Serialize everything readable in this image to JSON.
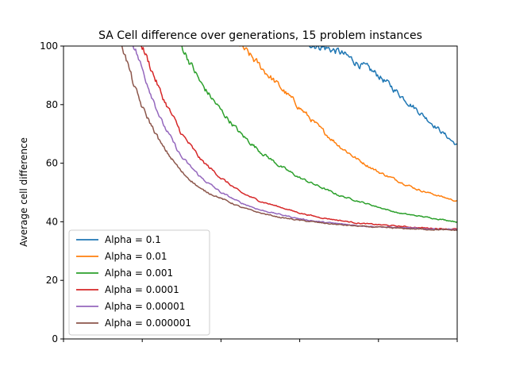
{
  "chart_data": {
    "type": "line",
    "title": "SA Cell difference over generations, 15 problem instances",
    "xlabel": "",
    "ylabel": "Average cell difference",
    "ylim": [
      0,
      100
    ],
    "yticks": [
      0,
      20,
      40,
      60,
      80,
      100
    ],
    "xlim": [
      0,
      1
    ],
    "xticks": [
      0,
      0.2,
      0.4,
      0.6,
      0.8,
      1.0
    ],
    "grid": false,
    "legend_position": "lower-left",
    "x": [
      0,
      0.05,
      0.1,
      0.15,
      0.18,
      0.2,
      0.25,
      0.3,
      0.35,
      0.4,
      0.45,
      0.5,
      0.55,
      0.6,
      0.65,
      0.7,
      0.75,
      0.8,
      0.85,
      0.9,
      0.95,
      1.0
    ],
    "series": [
      {
        "name": "Alpha = 0.1",
        "color": "#1f77b4",
        "values": [
          null,
          null,
          null,
          null,
          null,
          null,
          null,
          null,
          null,
          null,
          null,
          null,
          null,
          null,
          100,
          98,
          94,
          90,
          84,
          78,
          72,
          66
        ]
      },
      {
        "name": "Alpha = 0.01",
        "color": "#ff7f0e",
        "values": [
          null,
          null,
          null,
          null,
          null,
          null,
          null,
          null,
          null,
          null,
          100,
          93,
          86,
          79,
          72,
          66,
          61,
          57,
          54,
          51,
          49,
          47
        ]
      },
      {
        "name": "Alpha = 0.001",
        "color": "#2ca02c",
        "values": [
          null,
          null,
          null,
          null,
          null,
          null,
          null,
          100,
          87,
          78,
          70,
          64,
          59,
          55,
          52,
          49,
          47,
          45,
          43,
          42,
          41,
          40
        ]
      },
      {
        "name": "Alpha = 0.0001",
        "color": "#d62728",
        "values": [
          null,
          null,
          null,
          null,
          null,
          100,
          83,
          70,
          61,
          55,
          50,
          47,
          45,
          43,
          41.5,
          40.5,
          39.5,
          39,
          38.5,
          38,
          37.7,
          37.5
        ]
      },
      {
        "name": "Alpha = 0.00001",
        "color": "#9467bd",
        "values": [
          null,
          null,
          null,
          null,
          100,
          92,
          74,
          62,
          55,
          50,
          46.5,
          44,
          42.5,
          41,
          40,
          39.3,
          38.7,
          38.3,
          38,
          37.7,
          37.5,
          37.3
        ]
      },
      {
        "name": "Alpha = 0.000001",
        "color": "#8c564b",
        "values": [
          null,
          null,
          null,
          100,
          86,
          79,
          66,
          57,
          51,
          48,
          45,
          43,
          41.5,
          40.5,
          39.7,
          39,
          38.5,
          38.1,
          37.8,
          37.5,
          37.3,
          37.1
        ]
      }
    ]
  }
}
